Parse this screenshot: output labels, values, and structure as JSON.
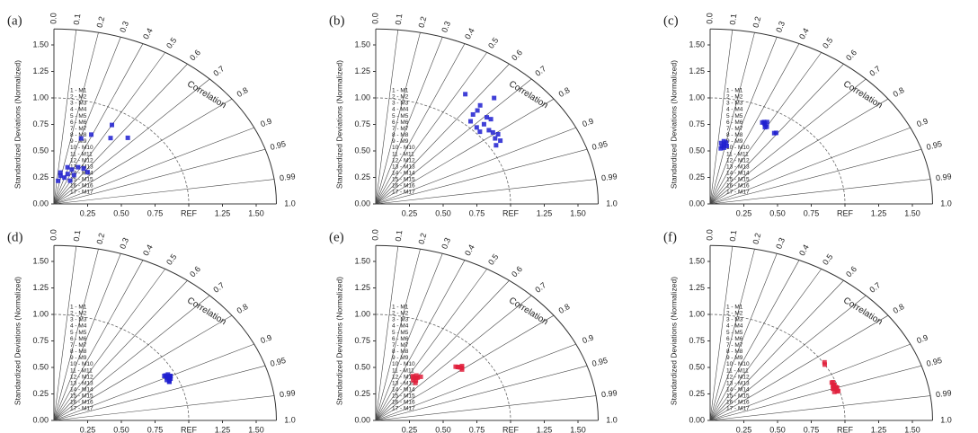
{
  "chart_data": [
    {
      "type": "taylor",
      "label": "(a)",
      "ylabel": "Standardized Deviations (Normalized)",
      "corr_label": "Correlation",
      "slim": [
        0,
        1.65
      ],
      "yticks": [
        {
          "value": 0,
          "label": "0.00"
        },
        0.25,
        {
          "value": 0.5,
          "label": "0.50"
        },
        0.75,
        {
          "value": 1,
          "label": "1.00"
        },
        1.25,
        {
          "value": 1.5,
          "label": "1.50"
        }
      ],
      "xticks": [
        0.25,
        {
          "value": 0.5,
          "label": "0.50"
        },
        0.75,
        {
          "value": 1,
          "label": "REF"
        },
        1.25,
        {
          "value": 1.5,
          "label": "1.50"
        }
      ],
      "corr_ticks": [
        {
          "value": 0,
          "label": "0.0"
        },
        0.1,
        0.2,
        0.3,
        0.4,
        0.5,
        0.6,
        0.7,
        0.8,
        0.9,
        0.95,
        0.99,
        {
          "value": 1,
          "label": "1.0"
        }
      ],
      "legend": [
        "1 - M1",
        "2 - M2",
        "3 - M3",
        "4 - M4",
        "5 - M5",
        "6 - M6",
        "7 - M7",
        "8 - M8",
        "9 - M9",
        "10 - M10",
        "11 - M11",
        "12 - M12",
        "13 - M13",
        "14 - M14",
        "15 - M15",
        "16 - M16",
        "17 - M17"
      ],
      "series": [
        {
          "color": "#1f1fd0",
          "std": [
            0.22,
            0.3,
            0.3,
            0.35,
            0.31,
            0.39,
            0.4,
            0.27,
            0.65,
            0.71,
            0.75,
            0.86,
            0.83,
            0.36,
            0.26,
            0.25,
            0.39
          ],
          "corr": [
            0.14,
            0.16,
            0.34,
            0.38,
            0.48,
            0.46,
            0.55,
            0.18,
            0.31,
            0.39,
            0.56,
            0.5,
            0.66,
            0.28,
            0.3,
            0.48,
            0.64
          ]
        }
      ]
    },
    {
      "type": "taylor",
      "label": "(b)",
      "ylabel": "Standardized Deviations (Normalized)",
      "corr_label": "Correlation",
      "slim": [
        0,
        1.65
      ],
      "yticks": [
        {
          "value": 0,
          "label": "0.00"
        },
        0.25,
        {
          "value": 0.5,
          "label": "0.50"
        },
        0.75,
        {
          "value": 1,
          "label": "1.00"
        },
        1.25,
        {
          "value": 1.5,
          "label": "1.50"
        }
      ],
      "xticks": [
        0.25,
        {
          "value": 0.5,
          "label": "0.50"
        },
        0.75,
        {
          "value": 1,
          "label": "REF"
        },
        1.25,
        {
          "value": 1.5,
          "label": "1.50"
        }
      ],
      "corr_ticks": [
        {
          "value": 0,
          "label": "0.0"
        },
        0.1,
        0.2,
        0.3,
        0.4,
        0.5,
        0.6,
        0.7,
        0.8,
        0.9,
        0.95,
        0.99,
        {
          "value": 1,
          "label": "1.0"
        }
      ],
      "legend": [
        "1 - M1",
        "2 - M2",
        "3 - M3",
        "4 - M4",
        "5 - M5",
        "6 - M6",
        "7 - M7",
        "8 - M8",
        "9 - M9",
        "10 - M10",
        "11 - M11",
        "12 - M12",
        "13 - M13",
        "14 - M14",
        "15 - M15",
        "16 - M16",
        "17 - M17"
      ],
      "series": [
        {
          "color": "#1f1fd0",
          "std": [
            1.23,
            1.33,
            1.11,
            1.21,
            1.05,
            1.16,
            1.17,
            1.04,
            1.08,
            1.05,
            1.1,
            1.1,
            1.1,
            1.03,
            1.09,
            1.12,
            1.16
          ],
          "corr": [
            0.54,
            0.66,
            0.65,
            0.64,
            0.67,
            0.71,
            0.73,
            0.72,
            0.82,
            0.85,
            0.79,
            0.73,
            0.84,
            0.75,
            0.77,
            0.81,
            0.65
          ]
        }
      ]
    },
    {
      "type": "taylor",
      "label": "(c)",
      "ylabel": "Standardized Deviations (Normalized)",
      "corr_label": "Correlation",
      "slim": [
        0,
        1.65
      ],
      "yticks": [
        {
          "value": 0,
          "label": "0.00"
        },
        0.25,
        {
          "value": 0.5,
          "label": "0.50"
        },
        0.75,
        {
          "value": 1,
          "label": "1.00"
        },
        1.25,
        {
          "value": 1.5,
          "label": "1.50"
        }
      ],
      "xticks": [
        0.25,
        {
          "value": 0.5,
          "label": "0.50"
        },
        0.75,
        {
          "value": 1,
          "label": "REF"
        },
        1.25,
        {
          "value": 1.5,
          "label": "1.50"
        }
      ],
      "corr_ticks": [
        {
          "value": 0,
          "label": "0.0"
        },
        0.1,
        0.2,
        0.3,
        0.4,
        0.5,
        0.6,
        0.7,
        0.8,
        0.9,
        0.95,
        0.99,
        {
          "value": 1,
          "label": "1.0"
        }
      ],
      "legend": [
        "1 - M1",
        "2 - M2",
        "3 - M3",
        "4 - M4",
        "5 - M5",
        "6 - M6",
        "7 - M7",
        "8 - M8",
        "9 - M9",
        "10 - M10",
        "11 - M11",
        "12 - M12",
        "13 - M13",
        "14 - M14",
        "15 - M15",
        "16 - M16",
        "17 - M17"
      ],
      "series": [
        {
          "color": "#1f1fd0",
          "std": [
            0.55,
            0.57,
            0.59,
            0.53,
            0.56,
            0.6,
            0.58,
            0.54,
            0.86,
            0.85,
            0.84,
            0.87,
            0.83,
            0.86,
            0.82,
            0.83,
            0.88
          ],
          "corr": [
            0.16,
            0.18,
            0.2,
            0.15,
            0.22,
            0.17,
            0.14,
            0.19,
            0.47,
            0.48,
            0.5,
            0.46,
            0.49,
            0.45,
            0.58,
            0.59,
            0.48
          ]
        }
      ]
    },
    {
      "type": "taylor",
      "label": "(d)",
      "ylabel": "Standardized Deviations (Normalized)",
      "corr_label": "Correlation",
      "slim": [
        0,
        1.65
      ],
      "yticks": [
        {
          "value": 0,
          "label": "0.00"
        },
        0.25,
        {
          "value": 0.5,
          "label": "0.50"
        },
        0.75,
        {
          "value": 1,
          "label": "1.00"
        },
        1.25,
        {
          "value": 1.5,
          "label": "1.50"
        }
      ],
      "xticks": [
        0.25,
        {
          "value": 0.5,
          "label": "0.50"
        },
        0.75,
        {
          "value": 1,
          "label": "REF"
        },
        1.25,
        {
          "value": 1.5,
          "label": "1.50"
        }
      ],
      "corr_ticks": [
        {
          "value": 0,
          "label": "0.0"
        },
        0.1,
        0.2,
        0.3,
        0.4,
        0.5,
        0.6,
        0.7,
        0.8,
        0.9,
        0.95,
        0.99,
        {
          "value": 1,
          "label": "1.0"
        }
      ],
      "legend": [
        "1 - M1",
        "2 - M2",
        "3 - M3",
        "4 - M4",
        "5 - M5",
        "6 - M6",
        "7 - M7",
        "8 - M8",
        "9 - M9",
        "10 - M10",
        "11 - M11",
        "12 - M12",
        "13 - M13",
        "14 - M14",
        "15 - M15",
        "16 - M16",
        "17 - M17"
      ],
      "series": [
        {
          "color": "#1f1fd0",
          "std": [
            0.93,
            0.94,
            0.95,
            0.92,
            0.94,
            0.96,
            0.93,
            0.95,
            0.94,
            0.92,
            0.95,
            0.93,
            0.94,
            0.96,
            0.93,
            0.95,
            0.94
          ],
          "corr": [
            0.9,
            0.91,
            0.9,
            0.89,
            0.91,
            0.9,
            0.92,
            0.89,
            0.9,
            0.91,
            0.9,
            0.89,
            0.91,
            0.9,
            0.92,
            0.91,
            0.9
          ]
        }
      ]
    },
    {
      "type": "taylor",
      "label": "(e)",
      "ylabel": "Standardized Deviations (Normalized)",
      "corr_label": "Correlation",
      "slim": [
        0,
        1.65
      ],
      "yticks": [
        {
          "value": 0,
          "label": "0.00"
        },
        0.25,
        {
          "value": 0.5,
          "label": "0.50"
        },
        0.75,
        {
          "value": 1,
          "label": "1.00"
        },
        1.25,
        {
          "value": 1.5,
          "label": "1.50"
        }
      ],
      "xticks": [
        0.25,
        {
          "value": 0.5,
          "label": "0.50"
        },
        0.75,
        {
          "value": 1,
          "label": "REF"
        },
        1.25,
        {
          "value": 1.5,
          "label": "1.50"
        }
      ],
      "corr_ticks": [
        {
          "value": 0,
          "label": "0.0"
        },
        0.1,
        0.2,
        0.3,
        0.4,
        0.5,
        0.6,
        0.7,
        0.8,
        0.9,
        0.95,
        0.99,
        {
          "value": 1,
          "label": "1.0"
        }
      ],
      "legend": [
        "1 - M1",
        "2 - M2",
        "3 - M3",
        "4 - M4",
        "5 - M5",
        "6 - M6",
        "7 - M7",
        "8 - M8",
        "9 - M9",
        "10 - M10",
        "11 - M11",
        "12 - M12",
        "13 - M13",
        "14 - M14",
        "15 - M15",
        "16 - M16",
        "17 - M17"
      ],
      "series": [
        {
          "color": "#e0203c",
          "std": [
            0.5,
            0.48,
            0.52,
            0.46,
            0.51,
            0.49,
            0.53,
            0.47,
            0.5,
            0.8,
            0.79,
            0.81,
            0.78,
            0.82,
            0.8,
            0.79,
            0.81
          ],
          "corr": [
            0.6,
            0.62,
            0.58,
            0.64,
            0.61,
            0.57,
            0.63,
            0.59,
            0.55,
            0.78,
            0.77,
            0.79,
            0.76,
            0.78,
            0.8,
            0.77,
            0.79
          ]
        }
      ]
    },
    {
      "type": "taylor",
      "label": "(f)",
      "ylabel": "Standardized Deviations (Normalized)",
      "corr_label": "Correlation",
      "slim": [
        0,
        1.65
      ],
      "yticks": [
        {
          "value": 0,
          "label": "0.00"
        },
        0.25,
        {
          "value": 0.5,
          "label": "0.50"
        },
        0.75,
        {
          "value": 1,
          "label": "1.00"
        },
        1.25,
        {
          "value": 1.5,
          "label": "1.50"
        }
      ],
      "xticks": [
        0.25,
        {
          "value": 0.5,
          "label": "0.50"
        },
        0.75,
        {
          "value": 1,
          "label": "REF"
        },
        1.25,
        {
          "value": 1.5,
          "label": "1.50"
        }
      ],
      "corr_ticks": [
        {
          "value": 0,
          "label": "0.0"
        },
        0.1,
        0.2,
        0.3,
        0.4,
        0.5,
        0.6,
        0.7,
        0.8,
        0.9,
        0.95,
        0.99,
        {
          "value": 1,
          "label": "1.0"
        }
      ],
      "legend": [
        "1 - M1",
        "2 - M2",
        "3 - M3",
        "4 - M4",
        "5 - M5",
        "6 - M6",
        "7 - M7",
        "8 - M8",
        "9 - M9",
        "10 - M10",
        "11 - M11",
        "12 - M12",
        "13 - M13",
        "14 - M14",
        "15 - M15",
        "16 - M16",
        "17 - M17"
      ],
      "series": [
        {
          "color": "#e0203c",
          "std": [
            1.01,
            1.0,
            0.98,
            0.97,
            0.99,
            0.96,
            0.98,
            0.97,
            0.99,
            0.98,
            0.96,
            0.97,
            0.98,
            0.99,
            0.97,
            0.96,
            0.98
          ],
          "corr": [
            0.84,
            0.85,
            0.95,
            0.94,
            0.95,
            0.96,
            0.94,
            0.95,
            0.96,
            0.93,
            0.95,
            0.94,
            0.96,
            0.95,
            0.93,
            0.95,
            0.94
          ]
        }
      ]
    }
  ]
}
